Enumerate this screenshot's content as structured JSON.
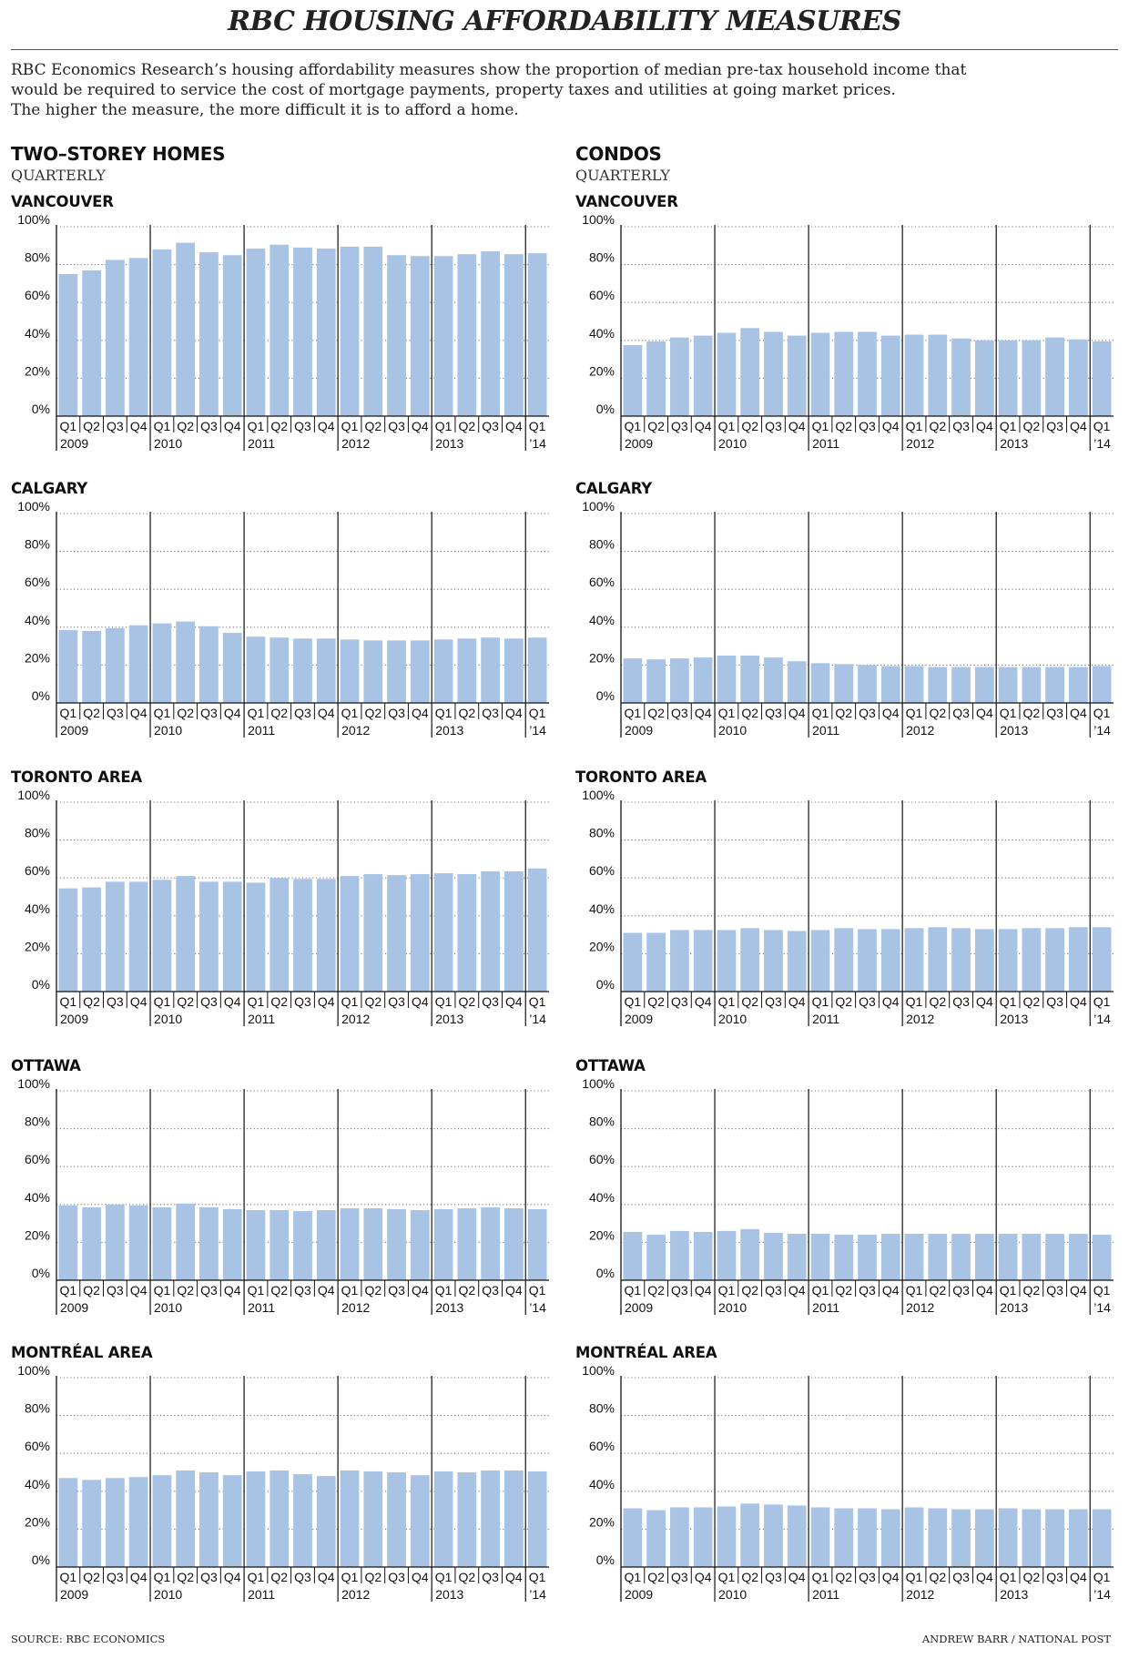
{
  "title": "RBC HOUSING AFFORDABILITY MEASURES",
  "intro": [
    "RBC Economics Research’s housing affordability measures show the proportion of median pre-tax household income that",
    "would be required to service the cost of mortgage payments, property taxes and utilities at going market prices.",
    "The higher the measure, the more difficult it is to afford a home."
  ],
  "columns": [
    {
      "heading": "TWO–STOREY HOMES",
      "sub": "QUARTERLY"
    },
    {
      "heading": "CONDOS",
      "sub": "QUARTERLY"
    }
  ],
  "source": "SOURCE: RBC ECONOMICS",
  "credit": "ANDREW BARR / NATIONAL POST",
  "colors": {
    "bar": "#a9c3e4",
    "grid": "#7a7a7a",
    "axis": "#111111"
  },
  "chart_data": [
    {
      "type": "bar",
      "column": "TWO–STOREY HOMES",
      "title": "VANCOUVER",
      "categories": [
        "Q1 2009",
        "Q2 2009",
        "Q3 2009",
        "Q4 2009",
        "Q1 2010",
        "Q2 2010",
        "Q3 2010",
        "Q4 2010",
        "Q1 2011",
        "Q2 2011",
        "Q3 2011",
        "Q4 2011",
        "Q1 2012",
        "Q2 2012",
        "Q3 2012",
        "Q4 2012",
        "Q1 2013",
        "Q2 2013",
        "Q3 2013",
        "Q4 2013",
        "Q1 2014"
      ],
      "quarter_labels": [
        "Q1",
        "Q2",
        "Q3",
        "Q4",
        "Q1",
        "Q2",
        "Q3",
        "Q4",
        "Q1",
        "Q2",
        "Q3",
        "Q4",
        "Q1",
        "Q2",
        "Q3",
        "Q4",
        "Q1",
        "Q2",
        "Q3",
        "Q4",
        "Q1"
      ],
      "year_labels": [
        "2009",
        "2010",
        "2011",
        "2012",
        "2013",
        "’14"
      ],
      "yticks": [
        "0%",
        "20%",
        "40%",
        "60%",
        "80%",
        "100%"
      ],
      "ylim": [
        0,
        100
      ],
      "values": [
        75,
        77,
        82.5,
        83.5,
        88,
        91.5,
        86.5,
        85,
        88.5,
        90.5,
        89,
        88.5,
        89.5,
        89.5,
        85,
        84.5,
        84.5,
        85.5,
        87,
        85.5,
        86
      ]
    },
    {
      "type": "bar",
      "column": "CONDOS",
      "title": "VANCOUVER",
      "categories": [
        "Q1 2009",
        "Q2 2009",
        "Q3 2009",
        "Q4 2009",
        "Q1 2010",
        "Q2 2010",
        "Q3 2010",
        "Q4 2010",
        "Q1 2011",
        "Q2 2011",
        "Q3 2011",
        "Q4 2011",
        "Q1 2012",
        "Q2 2012",
        "Q3 2012",
        "Q4 2012",
        "Q1 2013",
        "Q2 2013",
        "Q3 2013",
        "Q4 2013",
        "Q1 2014"
      ],
      "quarter_labels": [
        "Q1",
        "Q2",
        "Q3",
        "Q4",
        "Q1",
        "Q2",
        "Q3",
        "Q4",
        "Q1",
        "Q2",
        "Q3",
        "Q4",
        "Q1",
        "Q2",
        "Q3",
        "Q4",
        "Q1",
        "Q2",
        "Q3",
        "Q4",
        "Q1"
      ],
      "year_labels": [
        "2009",
        "2010",
        "2011",
        "2012",
        "2013",
        "’14"
      ],
      "yticks": [
        "0%",
        "20%",
        "40%",
        "60%",
        "80%",
        "100%"
      ],
      "ylim": [
        0,
        100
      ],
      "values": [
        37.5,
        39.5,
        41.5,
        42.5,
        44,
        46.5,
        44.5,
        42.5,
        44,
        44.5,
        44.5,
        42.5,
        43,
        43,
        41,
        40,
        40,
        40,
        41.5,
        40.5,
        39.5
      ]
    },
    {
      "type": "bar",
      "column": "TWO–STOREY HOMES",
      "title": "CALGARY",
      "categories": [
        "Q1 2009",
        "Q2 2009",
        "Q3 2009",
        "Q4 2009",
        "Q1 2010",
        "Q2 2010",
        "Q3 2010",
        "Q4 2010",
        "Q1 2011",
        "Q2 2011",
        "Q3 2011",
        "Q4 2011",
        "Q1 2012",
        "Q2 2012",
        "Q3 2012",
        "Q4 2012",
        "Q1 2013",
        "Q2 2013",
        "Q3 2013",
        "Q4 2013",
        "Q1 2014"
      ],
      "quarter_labels": [
        "Q1",
        "Q2",
        "Q3",
        "Q4",
        "Q1",
        "Q2",
        "Q3",
        "Q4",
        "Q1",
        "Q2",
        "Q3",
        "Q4",
        "Q1",
        "Q2",
        "Q3",
        "Q4",
        "Q1",
        "Q2",
        "Q3",
        "Q4",
        "Q1"
      ],
      "year_labels": [
        "2009",
        "2010",
        "2011",
        "2012",
        "2013",
        "’14"
      ],
      "yticks": [
        "0%",
        "20%",
        "40%",
        "60%",
        "80%",
        "100%"
      ],
      "ylim": [
        0,
        100
      ],
      "values": [
        38.5,
        38,
        39.5,
        41,
        42,
        43,
        40.5,
        37,
        35,
        34.5,
        34,
        34,
        33.5,
        33,
        33,
        33,
        33.5,
        34,
        34.5,
        34,
        34.5
      ]
    },
    {
      "type": "bar",
      "column": "CONDOS",
      "title": "CALGARY",
      "categories": [
        "Q1 2009",
        "Q2 2009",
        "Q3 2009",
        "Q4 2009",
        "Q1 2010",
        "Q2 2010",
        "Q3 2010",
        "Q4 2010",
        "Q1 2011",
        "Q2 2011",
        "Q3 2011",
        "Q4 2011",
        "Q1 2012",
        "Q2 2012",
        "Q3 2012",
        "Q4 2012",
        "Q1 2013",
        "Q2 2013",
        "Q3 2013",
        "Q4 2013",
        "Q1 2014"
      ],
      "quarter_labels": [
        "Q1",
        "Q2",
        "Q3",
        "Q4",
        "Q1",
        "Q2",
        "Q3",
        "Q4",
        "Q1",
        "Q2",
        "Q3",
        "Q4",
        "Q1",
        "Q2",
        "Q3",
        "Q4",
        "Q1",
        "Q2",
        "Q3",
        "Q4",
        "Q1"
      ],
      "year_labels": [
        "2009",
        "2010",
        "2011",
        "2012",
        "2013",
        "’14"
      ],
      "yticks": [
        "0%",
        "20%",
        "40%",
        "60%",
        "80%",
        "100%"
      ],
      "ylim": [
        0,
        100
      ],
      "values": [
        23.5,
        23,
        23.5,
        24,
        25,
        25,
        24,
        22,
        21,
        20.5,
        20,
        19.5,
        19.5,
        19,
        19,
        19,
        19,
        19,
        19,
        19,
        19.5
      ]
    },
    {
      "type": "bar",
      "column": "TWO–STOREY HOMES",
      "title": "TORONTO AREA",
      "categories": [
        "Q1 2009",
        "Q2 2009",
        "Q3 2009",
        "Q4 2009",
        "Q1 2010",
        "Q2 2010",
        "Q3 2010",
        "Q4 2010",
        "Q1 2011",
        "Q2 2011",
        "Q3 2011",
        "Q4 2011",
        "Q1 2012",
        "Q2 2012",
        "Q3 2012",
        "Q4 2012",
        "Q1 2013",
        "Q2 2013",
        "Q3 2013",
        "Q4 2013",
        "Q1 2014"
      ],
      "quarter_labels": [
        "Q1",
        "Q2",
        "Q3",
        "Q4",
        "Q1",
        "Q2",
        "Q3",
        "Q4",
        "Q1",
        "Q2",
        "Q3",
        "Q4",
        "Q1",
        "Q2",
        "Q3",
        "Q4",
        "Q1",
        "Q2",
        "Q3",
        "Q4",
        "Q1"
      ],
      "year_labels": [
        "2009",
        "2010",
        "2011",
        "2012",
        "2013",
        "’14"
      ],
      "yticks": [
        "0%",
        "20%",
        "40%",
        "60%",
        "80%",
        "100%"
      ],
      "ylim": [
        0,
        100
      ],
      "values": [
        54.5,
        55,
        58,
        58,
        59,
        61,
        58,
        58,
        57.5,
        60,
        59.5,
        59.5,
        61,
        62,
        61.5,
        62,
        62.5,
        62,
        63.5,
        63.5,
        65
      ]
    },
    {
      "type": "bar",
      "column": "CONDOS",
      "title": "TORONTO AREA",
      "categories": [
        "Q1 2009",
        "Q2 2009",
        "Q3 2009",
        "Q4 2009",
        "Q1 2010",
        "Q2 2010",
        "Q3 2010",
        "Q4 2010",
        "Q1 2011",
        "Q2 2011",
        "Q3 2011",
        "Q4 2011",
        "Q1 2012",
        "Q2 2012",
        "Q3 2012",
        "Q4 2012",
        "Q1 2013",
        "Q2 2013",
        "Q3 2013",
        "Q4 2013",
        "Q1 2014"
      ],
      "quarter_labels": [
        "Q1",
        "Q2",
        "Q3",
        "Q4",
        "Q1",
        "Q2",
        "Q3",
        "Q4",
        "Q1",
        "Q2",
        "Q3",
        "Q4",
        "Q1",
        "Q2",
        "Q3",
        "Q4",
        "Q1",
        "Q2",
        "Q3",
        "Q4",
        "Q1"
      ],
      "year_labels": [
        "2009",
        "2010",
        "2011",
        "2012",
        "2013",
        "’14"
      ],
      "yticks": [
        "0%",
        "20%",
        "40%",
        "60%",
        "80%",
        "100%"
      ],
      "ylim": [
        0,
        100
      ],
      "values": [
        31,
        31,
        32.5,
        32.5,
        32.5,
        33.5,
        32.5,
        32,
        32.5,
        33.5,
        33,
        33,
        33.5,
        34,
        33.5,
        33,
        33,
        33.5,
        33.5,
        34,
        34
      ]
    },
    {
      "type": "bar",
      "column": "TWO–STOREY HOMES",
      "title": "OTTAWA",
      "categories": [
        "Q1 2009",
        "Q2 2009",
        "Q3 2009",
        "Q4 2009",
        "Q1 2010",
        "Q2 2010",
        "Q3 2010",
        "Q4 2010",
        "Q1 2011",
        "Q2 2011",
        "Q3 2011",
        "Q4 2011",
        "Q1 2012",
        "Q2 2012",
        "Q3 2012",
        "Q4 2012",
        "Q1 2013",
        "Q2 2013",
        "Q3 2013",
        "Q4 2013",
        "Q1 2014"
      ],
      "quarter_labels": [
        "Q1",
        "Q2",
        "Q3",
        "Q4",
        "Q1",
        "Q2",
        "Q3",
        "Q4",
        "Q1",
        "Q2",
        "Q3",
        "Q4",
        "Q1",
        "Q2",
        "Q3",
        "Q4",
        "Q1",
        "Q2",
        "Q3",
        "Q4",
        "Q1"
      ],
      "year_labels": [
        "2009",
        "2010",
        "2011",
        "2012",
        "2013",
        "’14"
      ],
      "yticks": [
        "0%",
        "20%",
        "40%",
        "60%",
        "80%",
        "100%"
      ],
      "ylim": [
        0,
        100
      ],
      "values": [
        39.5,
        38.5,
        40,
        39.5,
        38.5,
        40.5,
        38.5,
        37.5,
        37,
        37,
        36.5,
        37,
        38,
        38,
        37.5,
        37,
        37.5,
        38,
        38.5,
        38,
        37.5
      ]
    },
    {
      "type": "bar",
      "column": "CONDOS",
      "title": "OTTAWA",
      "categories": [
        "Q1 2009",
        "Q2 2009",
        "Q3 2009",
        "Q4 2009",
        "Q1 2010",
        "Q2 2010",
        "Q3 2010",
        "Q4 2010",
        "Q1 2011",
        "Q2 2011",
        "Q3 2011",
        "Q4 2011",
        "Q1 2012",
        "Q2 2012",
        "Q3 2012",
        "Q4 2012",
        "Q1 2013",
        "Q2 2013",
        "Q3 2013",
        "Q4 2013",
        "Q1 2014"
      ],
      "quarter_labels": [
        "Q1",
        "Q2",
        "Q3",
        "Q4",
        "Q1",
        "Q2",
        "Q3",
        "Q4",
        "Q1",
        "Q2",
        "Q3",
        "Q4",
        "Q1",
        "Q2",
        "Q3",
        "Q4",
        "Q1",
        "Q2",
        "Q3",
        "Q4",
        "Q1"
      ],
      "year_labels": [
        "2009",
        "2010",
        "2011",
        "2012",
        "2013",
        "’14"
      ],
      "yticks": [
        "0%",
        "20%",
        "40%",
        "60%",
        "80%",
        "100%"
      ],
      "ylim": [
        0,
        100
      ],
      "values": [
        25.5,
        24,
        26,
        25.5,
        26,
        27,
        25,
        24.5,
        24.5,
        24,
        24,
        24.5,
        24.5,
        24.5,
        24.5,
        24.5,
        24.5,
        24.5,
        24.5,
        24.5,
        24
      ]
    },
    {
      "type": "bar",
      "column": "TWO–STOREY HOMES",
      "title": "MONTRÉAL AREA",
      "categories": [
        "Q1 2009",
        "Q2 2009",
        "Q3 2009",
        "Q4 2009",
        "Q1 2010",
        "Q2 2010",
        "Q3 2010",
        "Q4 2010",
        "Q1 2011",
        "Q2 2011",
        "Q3 2011",
        "Q4 2011",
        "Q1 2012",
        "Q2 2012",
        "Q3 2012",
        "Q4 2012",
        "Q1 2013",
        "Q2 2013",
        "Q3 2013",
        "Q4 2013",
        "Q1 2014"
      ],
      "quarter_labels": [
        "Q1",
        "Q2",
        "Q3",
        "Q4",
        "Q1",
        "Q2",
        "Q3",
        "Q4",
        "Q1",
        "Q2",
        "Q3",
        "Q4",
        "Q1",
        "Q2",
        "Q3",
        "Q4",
        "Q1",
        "Q2",
        "Q3",
        "Q4",
        "Q1"
      ],
      "year_labels": [
        "2009",
        "2010",
        "2011",
        "2012",
        "2013",
        "’14"
      ],
      "yticks": [
        "0%",
        "20%",
        "40%",
        "60%",
        "80%",
        "100%"
      ],
      "ylim": [
        0,
        100
      ],
      "values": [
        47,
        46,
        47,
        47.5,
        48.5,
        51,
        50,
        48.5,
        50.5,
        51,
        49,
        48,
        51,
        50.5,
        50,
        48.5,
        50.5,
        50,
        51,
        51,
        50.5
      ]
    },
    {
      "type": "bar",
      "column": "CONDOS",
      "title": "MONTRÉAL AREA",
      "categories": [
        "Q1 2009",
        "Q2 2009",
        "Q3 2009",
        "Q4 2009",
        "Q1 2010",
        "Q2 2010",
        "Q3 2010",
        "Q4 2010",
        "Q1 2011",
        "Q2 2011",
        "Q3 2011",
        "Q4 2011",
        "Q1 2012",
        "Q2 2012",
        "Q3 2012",
        "Q4 2012",
        "Q1 2013",
        "Q2 2013",
        "Q3 2013",
        "Q4 2013",
        "Q1 2014"
      ],
      "quarter_labels": [
        "Q1",
        "Q2",
        "Q3",
        "Q4",
        "Q1",
        "Q2",
        "Q3",
        "Q4",
        "Q1",
        "Q2",
        "Q3",
        "Q4",
        "Q1",
        "Q2",
        "Q3",
        "Q4",
        "Q1",
        "Q2",
        "Q3",
        "Q4",
        "Q1"
      ],
      "year_labels": [
        "2009",
        "2010",
        "2011",
        "2012",
        "2013",
        "’14"
      ],
      "yticks": [
        "0%",
        "20%",
        "40%",
        "60%",
        "80%",
        "100%"
      ],
      "ylim": [
        0,
        100
      ],
      "values": [
        31,
        30,
        31.5,
        31.5,
        32,
        33.5,
        33,
        32.5,
        31.5,
        31,
        31,
        30.5,
        31.5,
        31,
        30.5,
        30.5,
        31,
        30.5,
        30.5,
        30.5,
        30.5
      ]
    }
  ]
}
